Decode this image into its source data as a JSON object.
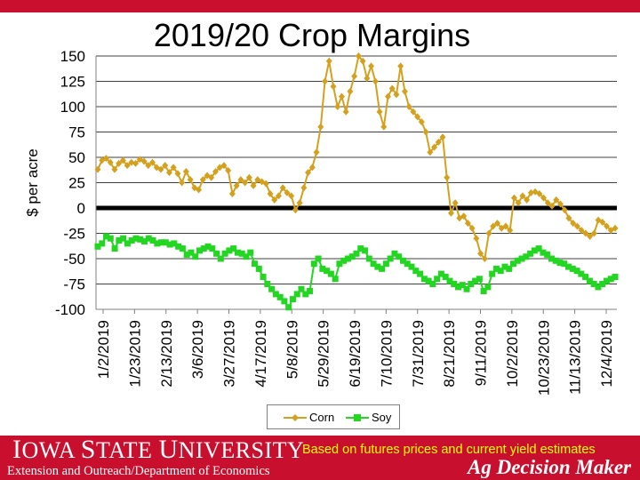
{
  "colors": {
    "header_bar": "#c8102e",
    "footer_bar": "#c8102e",
    "corn": "#d4a11f",
    "soy": "#22d622",
    "zero_line": "#000000",
    "footer_text": "#ffffff",
    "footer_note": "#ffff00"
  },
  "title": "2019/20 Crop Margins",
  "footer": {
    "university_first": "I",
    "university_rest": "OWA ",
    "university_second_first": "S",
    "university_second_rest": "TATE ",
    "university_third_first": "U",
    "university_third_rest": "NIVERSITY",
    "extension": "Extension and Outreach/Department of Economics",
    "note": "Based on futures prices and current yield estimates",
    "brand": "Ag Decision Maker"
  },
  "chart_data": {
    "type": "line",
    "title": "2019/20 Crop Margins",
    "ylabel": "$ per acre",
    "xlabel": "",
    "ylim": [
      -100,
      150
    ],
    "yticks": [
      150,
      125,
      100,
      75,
      50,
      25,
      0,
      -25,
      -50,
      -75,
      -100
    ],
    "grid": true,
    "legend_position": "bottom",
    "xticks": [
      "1/2/2019",
      "1/23/2019",
      "2/13/2019",
      "3/6/2019",
      "3/27/2019",
      "4/17/2019",
      "5/8/2019",
      "5/29/2019",
      "6/19/2019",
      "7/10/2019",
      "7/31/2019",
      "8/21/2019",
      "9/11/2019",
      "10/2/2019",
      "10/23/2019",
      "11/13/2019",
      "12/4/2019"
    ],
    "series": [
      {
        "name": "Corn",
        "marker": "diamond",
        "values": [
          38,
          47,
          49,
          45,
          38,
          44,
          47,
          42,
          45,
          44,
          48,
          46,
          42,
          45,
          40,
          38,
          42,
          35,
          40,
          34,
          25,
          36,
          28,
          20,
          18,
          28,
          32,
          30,
          36,
          40,
          42,
          37,
          14,
          22,
          28,
          25,
          30,
          22,
          28,
          26,
          24,
          14,
          8,
          12,
          20,
          15,
          12,
          -2,
          5,
          20,
          35,
          40,
          55,
          80,
          125,
          145,
          120,
          100,
          110,
          95,
          115,
          130,
          150,
          145,
          128,
          140,
          125,
          95,
          80,
          110,
          118,
          112,
          140,
          115,
          100,
          95,
          90,
          85,
          75,
          55,
          60,
          65,
          70,
          30,
          -5,
          5,
          -10,
          -8,
          -15,
          -20,
          -30,
          -45,
          -50,
          -25,
          -18,
          -15,
          -20,
          -18,
          -22,
          10,
          5,
          12,
          8,
          15,
          16,
          14,
          10,
          5,
          2,
          8,
          4,
          -2,
          -10,
          -15,
          -18,
          -22,
          -25,
          -28,
          -25,
          -12,
          -14,
          -18,
          -22,
          -20
        ]
      },
      {
        "name": "Soy",
        "marker": "square",
        "values": [
          -38,
          -35,
          -28,
          -30,
          -40,
          -32,
          -30,
          -35,
          -32,
          -30,
          -31,
          -33,
          -30,
          -32,
          -35,
          -34,
          -34,
          -36,
          -35,
          -38,
          -40,
          -46,
          -44,
          -48,
          -42,
          -40,
          -38,
          -40,
          -45,
          -50,
          -45,
          -42,
          -40,
          -44,
          -45,
          -48,
          -44,
          -55,
          -60,
          -68,
          -75,
          -80,
          -85,
          -88,
          -92,
          -98,
          -90,
          -85,
          -80,
          -85,
          -82,
          -55,
          -50,
          -60,
          -62,
          -65,
          -70,
          -55,
          -52,
          -50,
          -48,
          -45,
          -40,
          -42,
          -50,
          -55,
          -58,
          -60,
          -55,
          -50,
          -45,
          -48,
          -52,
          -55,
          -58,
          -62,
          -65,
          -70,
          -72,
          -75,
          -70,
          -65,
          -68,
          -72,
          -75,
          -78,
          -76,
          -80,
          -75,
          -72,
          -70,
          -82,
          -78,
          -65,
          -60,
          -62,
          -58,
          -60,
          -55,
          -52,
          -50,
          -48,
          -45,
          -42,
          -40,
          -44,
          -46,
          -50,
          -52,
          -54,
          -55,
          -58,
          -60,
          -62,
          -65,
          -68,
          -72,
          -75,
          -78,
          -75,
          -72,
          -70,
          -68
        ]
      }
    ]
  }
}
